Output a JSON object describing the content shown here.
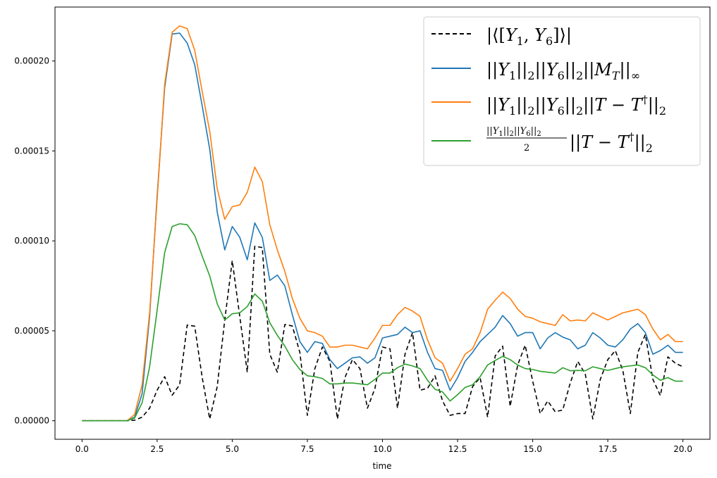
{
  "chart_data": {
    "type": "line",
    "xlabel": "time",
    "ylabel": "",
    "xlim": [
      -0.9,
      20.9
    ],
    "ylim": [
      -1.03e-05,
      0.00023
    ],
    "xticks": [
      "0.0",
      "2.5",
      "5.0",
      "7.5",
      "10.0",
      "12.5",
      "15.0",
      "17.5",
      "20.0"
    ],
    "xtick_values": [
      0,
      2.5,
      5,
      7.5,
      10,
      12.5,
      15,
      17.5,
      20
    ],
    "yticks": [
      "0.00000",
      "0.00005",
      "0.00010",
      "0.00015",
      "0.00020"
    ],
    "ytick_values": [
      0,
      5e-05,
      0.0001,
      0.00015,
      0.0002
    ],
    "legend_position": "top-right",
    "grid": false,
    "x": [
      0,
      0.25,
      0.5,
      0.75,
      1.0,
      1.25,
      1.5,
      1.75,
      2.0,
      2.25,
      2.5,
      2.75,
      3.0,
      3.25,
      3.5,
      3.75,
      4.0,
      4.25,
      4.5,
      4.75,
      5.0,
      5.25,
      5.5,
      5.75,
      6.0,
      6.25,
      6.5,
      6.75,
      7.0,
      7.25,
      7.5,
      7.75,
      8.0,
      8.25,
      8.5,
      8.75,
      9.0,
      9.25,
      9.5,
      9.75,
      10.0,
      10.25,
      10.5,
      10.75,
      11.0,
      11.25,
      11.5,
      11.75,
      12.0,
      12.25,
      12.5,
      12.75,
      13.0,
      13.25,
      13.5,
      13.75,
      14.0,
      14.25,
      14.5,
      14.75,
      15.0,
      15.25,
      15.5,
      15.75,
      16.0,
      16.25,
      16.5,
      16.75,
      17.0,
      17.25,
      17.5,
      17.75,
      18.0,
      18.25,
      18.5,
      18.75,
      19.0,
      19.25,
      19.5,
      19.75,
      20.0
    ],
    "series": [
      {
        "name": "|⟨[Y₁, Y₆]⟩|",
        "color": "#000000",
        "dash": "6,4",
        "values": [
          0,
          0,
          0,
          0,
          0,
          0,
          0,
          3e-07,
          2e-06,
          7e-06,
          1.7e-05,
          2.45e-05,
          1.42e-05,
          2e-05,
          5.32e-05,
          5.26e-05,
          2.4e-05,
          1e-06,
          1.9e-05,
          5.6e-05,
          8.9e-05,
          5.8e-05,
          2.7e-05,
          9.7e-05,
          9.63e-05,
          3.7e-05,
          2.7e-05,
          5.35e-05,
          5.27e-05,
          3.8e-05,
          3e-06,
          2.9e-05,
          4.1e-05,
          3.3e-05,
          1e-06,
          2.4e-05,
          3.4e-05,
          2.9e-05,
          7e-06,
          1.8e-05,
          4.1e-05,
          4e-05,
          7e-06,
          3.7e-05,
          4.9e-05,
          1.7e-05,
          1.8e-05,
          2.5e-05,
          1.1e-05,
          3e-06,
          4e-06,
          4e-06,
          1.9e-05,
          2.4e-05,
          2e-06,
          3.6e-05,
          4.15e-05,
          8e-06,
          3.1e-05,
          4.2e-05,
          2.2e-05,
          4e-06,
          1.1e-05,
          5e-06,
          6e-06,
          2.1e-05,
          3.3e-05,
          2.6e-05,
          1e-06,
          2.3e-05,
          3.4e-05,
          3.9e-05,
          2.8e-05,
          4e-06,
          3.8e-05,
          4.8e-05,
          2.3e-05,
          1.4e-05,
          3.55e-05,
          3.2e-05,
          3e-05
        ]
      },
      {
        "name": "||Y₁||₂||Y₆||₂||M_T||∞",
        "color": "#1f77b4",
        "dash": "",
        "values": [
          0,
          0,
          0,
          0,
          0,
          0,
          0,
          2e-06,
          1.5e-05,
          5.8e-05,
          0.000125,
          0.000185,
          0.000215,
          0.0002155,
          0.00021,
          0.000198,
          0.000175,
          0.000151,
          0.000116,
          9.5e-05,
          0.000108,
          0.000102,
          8.95e-05,
          0.00011,
          0.000102,
          7.8e-05,
          8.1e-05,
          7.5e-05,
          5.9e-05,
          4.4e-05,
          3.8e-05,
          4.4e-05,
          4.3e-05,
          3.4e-05,
          2.9e-05,
          3.2e-05,
          3.5e-05,
          3.55e-05,
          3.2e-05,
          3.5e-05,
          4.6e-05,
          4.7e-05,
          4.8e-05,
          5.2e-05,
          4.9e-05,
          5e-05,
          3.8e-05,
          2.9e-05,
          2.8e-05,
          1.7e-05,
          2.4e-05,
          3.3e-05,
          3.8e-05,
          4.4e-05,
          4.8e-05,
          5.2e-05,
          5.85e-05,
          5.4e-05,
          4.7e-05,
          4.9e-05,
          4.9e-05,
          4e-05,
          4.6e-05,
          4.9e-05,
          4.65e-05,
          4.5e-05,
          4e-05,
          4.2e-05,
          4.9e-05,
          4.6e-05,
          4.2e-05,
          4.1e-05,
          4.5e-05,
          5.1e-05,
          5.4e-05,
          4.9e-05,
          3.7e-05,
          3.9e-05,
          4.2e-05,
          3.8e-05,
          3.8e-05
        ]
      },
      {
        "name": "||Y₁||₂||Y₆||₂||T − T†||₂",
        "color": "#ff7f0e",
        "dash": "",
        "values": [
          0,
          0,
          0,
          0,
          0,
          0,
          0,
          3.5e-06,
          2e-05,
          6e-05,
          0.000123,
          0.000187,
          0.000216,
          0.0002195,
          0.000218,
          0.000206,
          0.000183,
          0.000161,
          0.000129,
          0.000112,
          0.000119,
          0.00012,
          0.000127,
          0.000141,
          0.000133,
          0.000109,
          9.5e-05,
          8.3e-05,
          6.8e-05,
          5.7e-05,
          5e-05,
          4.9e-05,
          4.7e-05,
          4.1e-05,
          4.1e-05,
          4.2e-05,
          4.2e-05,
          4.1e-05,
          4e-05,
          4.6e-05,
          5.3e-05,
          5.3e-05,
          5.9e-05,
          6.3e-05,
          6.1e-05,
          5.8e-05,
          4.5e-05,
          3.5e-05,
          3.2e-05,
          2.2e-05,
          2.9e-05,
          3.7e-05,
          4e-05,
          4.9e-05,
          6.2e-05,
          6.7e-05,
          7.15e-05,
          6.8e-05,
          6.2e-05,
          5.8e-05,
          5.7e-05,
          5.5e-05,
          5.4e-05,
          5.3e-05,
          5.9e-05,
          5.55e-05,
          5.6e-05,
          5.55e-05,
          6e-05,
          5.8e-05,
          5.6e-05,
          5.8e-05,
          6e-05,
          6.1e-05,
          6.2e-05,
          5.9e-05,
          5.1e-05,
          4.5e-05,
          4.8e-05,
          4.4e-05,
          4.4e-05
        ]
      },
      {
        "name": "(||Y₁||₂||Y₆||₂ / 2) ||T − T†||₂",
        "color": "#2ca02c",
        "dash": "",
        "values": [
          0,
          0,
          0,
          0,
          0,
          0,
          0,
          1.5e-06,
          1e-05,
          3e-05,
          6.15e-05,
          9.35e-05,
          0.000108,
          0.0001095,
          0.000109,
          0.000103,
          9.15e-05,
          8.05e-05,
          6.5e-05,
          5.6e-05,
          5.95e-05,
          6e-05,
          6.35e-05,
          7.05e-05,
          6.65e-05,
          5.45e-05,
          4.75e-05,
          4.15e-05,
          3.4e-05,
          2.85e-05,
          2.5e-05,
          2.45e-05,
          2.35e-05,
          2.05e-05,
          2.05e-05,
          2.1e-05,
          2.1e-05,
          2.05e-05,
          2e-05,
          2.3e-05,
          2.65e-05,
          2.65e-05,
          2.95e-05,
          3.15e-05,
          3.05e-05,
          2.9e-05,
          2.25e-05,
          1.75e-05,
          1.6e-05,
          1.1e-05,
          1.45e-05,
          1.85e-05,
          2e-05,
          2.45e-05,
          3.1e-05,
          3.35e-05,
          3.58e-05,
          3.4e-05,
          3.1e-05,
          2.9e-05,
          2.85e-05,
          2.75e-05,
          2.7e-05,
          2.65e-05,
          2.95e-05,
          2.78e-05,
          2.8e-05,
          2.78e-05,
          3e-05,
          2.9e-05,
          2.8e-05,
          2.9e-05,
          3e-05,
          3.05e-05,
          3.1e-05,
          2.95e-05,
          2.55e-05,
          2.25e-05,
          2.4e-05,
          2.2e-05,
          2.2e-05
        ]
      }
    ]
  },
  "legend": {
    "entries": [
      {
        "color": "#000000",
        "dash": true,
        "key": "commutator"
      },
      {
        "color": "#1f77b4",
        "dash": false,
        "key": "mt"
      },
      {
        "color": "#ff7f0e",
        "dash": false,
        "key": "ttdag"
      },
      {
        "color": "#2ca02c",
        "dash": false,
        "key": "half"
      }
    ]
  }
}
